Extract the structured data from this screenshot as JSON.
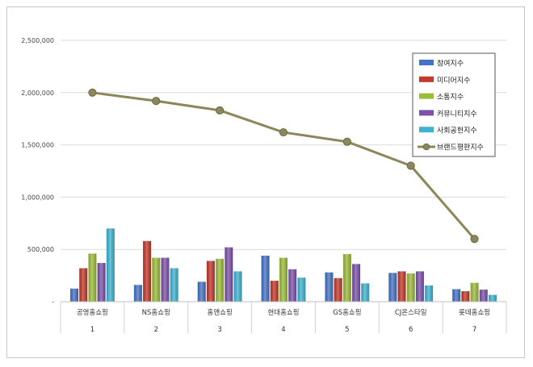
{
  "chart_data": {
    "type": "bar",
    "title": "",
    "xlabel": "",
    "ylabel": "",
    "ylim": [
      0,
      2500000
    ],
    "yticks": [
      "-",
      "500,000",
      "1,000,000",
      "1,500,000",
      "2,000,000",
      "2,500,000"
    ],
    "categories": [
      "공영홈쇼핑",
      "NS홈쇼핑",
      "홈앤쇼핑",
      "현대홈쇼핑",
      "GS홈쇼핑",
      "CJ온스타일",
      "롯데홈쇼핑"
    ],
    "indices": [
      "1",
      "2",
      "3",
      "4",
      "5",
      "6",
      "7"
    ],
    "series": [
      {
        "name": "참여지수",
        "kind": "bar",
        "color": "#4472c4",
        "values": [
          125000,
          160000,
          190000,
          440000,
          280000,
          275000,
          120000
        ]
      },
      {
        "name": "미디어지수",
        "kind": "bar",
        "color": "#c0392b",
        "values": [
          320000,
          580000,
          390000,
          200000,
          225000,
          290000,
          100000
        ]
      },
      {
        "name": "소통지수",
        "kind": "bar",
        "color": "#9bbb3b",
        "values": [
          460000,
          420000,
          410000,
          420000,
          455000,
          270000,
          180000
        ]
      },
      {
        "name": "커뮤니티지수",
        "kind": "bar",
        "color": "#7b52a8",
        "values": [
          370000,
          420000,
          520000,
          310000,
          360000,
          290000,
          115000
        ]
      },
      {
        "name": "사회공헌지수",
        "kind": "bar",
        "color": "#3fb2d0",
        "values": [
          700000,
          320000,
          290000,
          230000,
          175000,
          155000,
          65000
        ]
      },
      {
        "name": "브랜드평판지수",
        "kind": "line",
        "color": "#8c875a",
        "values": [
          2000000,
          1920000,
          1830000,
          1620000,
          1530000,
          1300000,
          600000
        ]
      }
    ],
    "legend": "top-right"
  }
}
